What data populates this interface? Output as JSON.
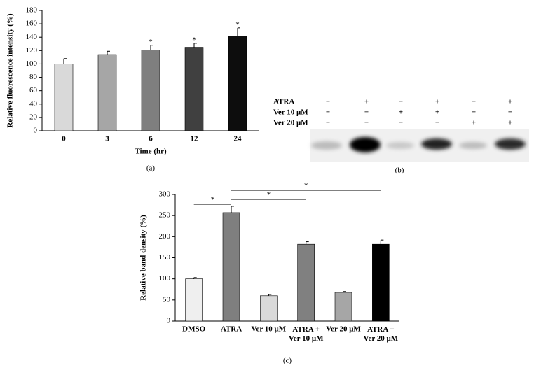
{
  "chart_data": [
    {
      "type": "bar",
      "panel": "(a)",
      "y_label": "Relative fluorescence intensity (%)",
      "x_label": "Time (hr)",
      "categories": [
        "0",
        "3",
        "6",
        "12",
        "24"
      ],
      "values": [
        100,
        114,
        121,
        125,
        142
      ],
      "errors": [
        8,
        5,
        7,
        6,
        12
      ],
      "colors": [
        "#d9d9d9",
        "#a6a6a6",
        "#7f7f7f",
        "#404040",
        "#0d0d0d"
      ],
      "ylim": [
        0,
        180
      ],
      "yticks": [
        0,
        20,
        40,
        60,
        80,
        100,
        120,
        140,
        160,
        180
      ],
      "annotations": [
        {
          "text": "*",
          "category": "6"
        },
        {
          "text": "*",
          "category": "12"
        },
        {
          "text": "*",
          "category": "24"
        }
      ]
    },
    {
      "type": "bar",
      "panel": "(c)",
      "y_label": "Relative band density (%)",
      "categories": [
        "DMSO",
        "ATRA",
        "Ver 10 μM",
        "ATRA +\nVer 10 μM",
        "Ver 20 μM",
        "ATRA +\nVer 20 μM"
      ],
      "values": [
        100,
        257,
        60,
        182,
        68,
        182
      ],
      "errors": [
        3,
        15,
        3,
        6,
        2,
        10
      ],
      "colors": [
        "#efefef",
        "#7f7f7f",
        "#d9d9d9",
        "#808080",
        "#a6a6a6",
        "#000000"
      ],
      "ylim": [
        0,
        300
      ],
      "yticks": [
        0,
        50,
        100,
        150,
        200,
        250,
        300
      ],
      "brackets": [
        {
          "from": "DMSO",
          "to": "ATRA",
          "text": "*"
        },
        {
          "from": "ATRA",
          "to": "ATRA +\nVer 10 μM",
          "text": "*"
        },
        {
          "from": "ATRA",
          "to": "ATRA +\nVer 20 μM",
          "text": "*"
        }
      ]
    }
  ],
  "blot": {
    "panel": "(b)",
    "rows": [
      {
        "label": "ATRA",
        "signs": [
          "−",
          "+",
          "−",
          "+",
          "−",
          "+"
        ]
      },
      {
        "label": "Ver 10 μM",
        "signs": [
          "−",
          "−",
          "+",
          "+",
          "−",
          "−"
        ]
      },
      {
        "label": "Ver 20 μM",
        "signs": [
          "−",
          "−",
          "−",
          "−",
          "+",
          "+"
        ]
      }
    ]
  }
}
